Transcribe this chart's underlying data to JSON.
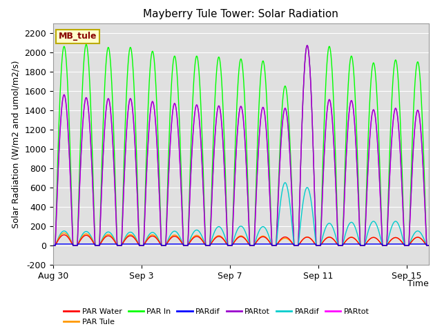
{
  "title": "Mayberry Tule Tower: Solar Radiation",
  "ylabel": "Solar Radiation (W/m2 and umol/m2/s)",
  "xlabel": "Time",
  "ylim": [
    -200,
    2300
  ],
  "yticks": [
    -200,
    0,
    200,
    400,
    600,
    800,
    1000,
    1200,
    1400,
    1600,
    1800,
    2000,
    2200
  ],
  "bg_color": "#e0e0e0",
  "legend_label": "MB_tule",
  "num_days": 17,
  "peaks": [
    {
      "day": 0.42,
      "green": 2060,
      "magenta": 1560,
      "red": 110,
      "orange": 130,
      "cyan": 150
    },
    {
      "day": 0.58,
      "green": 2060,
      "magenta": 1540,
      "red": 110,
      "orange": 130,
      "cyan": 150
    },
    {
      "day": 1.42,
      "green": 2080,
      "magenta": 1530,
      "red": 105,
      "orange": 120,
      "cyan": 145
    },
    {
      "day": 1.58,
      "green": 2060,
      "magenta": 1510,
      "red": 105,
      "orange": 120,
      "cyan": 145
    },
    {
      "day": 2.42,
      "green": 2040,
      "magenta": 1520,
      "red": 100,
      "orange": 115,
      "cyan": 140
    },
    {
      "day": 2.58,
      "green": 2050,
      "magenta": 1510,
      "red": 100,
      "orange": 115,
      "cyan": 140
    },
    {
      "day": 3.42,
      "green": 2040,
      "magenta": 1520,
      "red": 100,
      "orange": 112,
      "cyan": 138
    },
    {
      "day": 3.58,
      "green": 2050,
      "magenta": 1510,
      "red": 100,
      "orange": 112,
      "cyan": 138
    },
    {
      "day": 4.42,
      "green": 2010,
      "magenta": 1490,
      "red": 97,
      "orange": 110,
      "cyan": 135
    },
    {
      "day": 4.58,
      "green": 2010,
      "magenta": 1480,
      "red": 97,
      "orange": 110,
      "cyan": 135
    },
    {
      "day": 5.42,
      "green": 1960,
      "magenta": 1470,
      "red": 95,
      "orange": 108,
      "cyan": 148
    },
    {
      "day": 5.58,
      "green": 1960,
      "magenta": 1470,
      "red": 95,
      "orange": 108,
      "cyan": 148
    },
    {
      "day": 6.42,
      "green": 1960,
      "magenta": 1455,
      "red": 93,
      "orange": 105,
      "cyan": 148
    },
    {
      "day": 6.58,
      "green": 1960,
      "magenta": 1450,
      "red": 93,
      "orange": 105,
      "cyan": 160
    },
    {
      "day": 7.42,
      "green": 1950,
      "magenta": 1445,
      "red": 93,
      "orange": 102,
      "cyan": 170
    },
    {
      "day": 7.58,
      "green": 1940,
      "magenta": 1440,
      "red": 93,
      "orange": 102,
      "cyan": 195
    },
    {
      "day": 8.42,
      "green": 1930,
      "magenta": 1440,
      "red": 92,
      "orange": 100,
      "cyan": 185
    },
    {
      "day": 8.58,
      "green": 1920,
      "magenta": 1435,
      "red": 92,
      "orange": 100,
      "cyan": 200
    },
    {
      "day": 9.42,
      "green": 1910,
      "magenta": 1430,
      "red": 90,
      "orange": 98,
      "cyan": 195
    },
    {
      "day": 9.58,
      "green": 1900,
      "magenta": 1420,
      "red": 90,
      "orange": 98,
      "cyan": 190
    },
    {
      "day": 10.42,
      "green": 1650,
      "magenta": 1420,
      "red": 88,
      "orange": 75,
      "cyan": 650
    },
    {
      "day": 10.58,
      "green": 1640,
      "magenta": 960,
      "red": 88,
      "orange": 75,
      "cyan": 520
    },
    {
      "day": 11.42,
      "green": 2070,
      "magenta": 2070,
      "red": 86,
      "orange": 88,
      "cyan": 600
    },
    {
      "day": 11.58,
      "green": 2060,
      "magenta": 1510,
      "red": 86,
      "orange": 88,
      "cyan": 540
    },
    {
      "day": 12.42,
      "green": 2060,
      "magenta": 1510,
      "red": 85,
      "orange": 88,
      "cyan": 230
    },
    {
      "day": 12.58,
      "green": 2050,
      "magenta": 1505,
      "red": 85,
      "orange": 88,
      "cyan": 130
    },
    {
      "day": 13.42,
      "green": 1960,
      "magenta": 1500,
      "red": 84,
      "orange": 86,
      "cyan": 240
    },
    {
      "day": 13.58,
      "green": 1950,
      "magenta": 1500,
      "red": 84,
      "orange": 86,
      "cyan": 235
    },
    {
      "day": 14.42,
      "green": 1890,
      "magenta": 1405,
      "red": 83,
      "orange": 84,
      "cyan": 250
    },
    {
      "day": 14.58,
      "green": 1890,
      "magenta": 1400,
      "red": 83,
      "orange": 84,
      "cyan": 250
    },
    {
      "day": 15.42,
      "green": 1920,
      "magenta": 1415,
      "red": 82,
      "orange": 82,
      "cyan": 250
    },
    {
      "day": 15.58,
      "green": 1910,
      "magenta": 1420,
      "red": 82,
      "orange": 82,
      "cyan": 250
    }
  ],
  "xtick_positions": [
    0,
    4,
    8,
    12,
    16
  ],
  "xtick_labels": [
    "Aug 30",
    "Sep 3",
    "Sep 7",
    "Sep 11",
    "Sep 15"
  ]
}
